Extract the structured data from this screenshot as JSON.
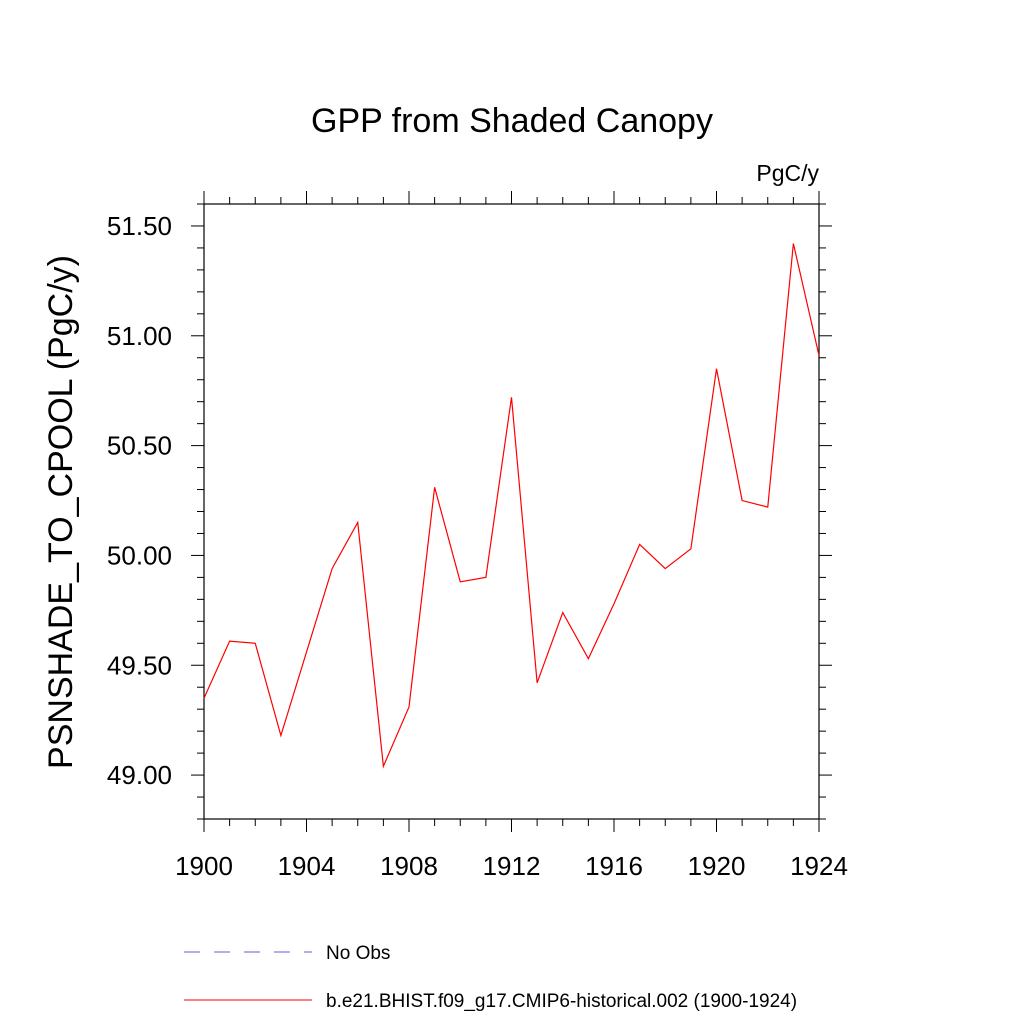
{
  "chart_data": {
    "type": "line",
    "title": "GPP from Shaded Canopy",
    "units_label": "PgC/y",
    "xlabel": "",
    "ylabel": "PSNSHADE_TO_CPOOL  (PgC/y)",
    "xlim": [
      1900,
      1924
    ],
    "ylim": [
      48.8,
      51.6
    ],
    "x_ticks": [
      1900,
      1904,
      1908,
      1912,
      1916,
      1920,
      1924
    ],
    "x_minor_step": 1,
    "y_ticks": [
      49.0,
      49.5,
      50.0,
      50.5,
      51.0,
      51.5
    ],
    "y_tick_labels": [
      "49.00",
      "49.50",
      "50.00",
      "50.50",
      "51.00",
      "51.50"
    ],
    "y_minor_step": 0.1,
    "grid": false,
    "legend_position": "bottom",
    "x": [
      1900,
      1901,
      1902,
      1903,
      1904,
      1905,
      1906,
      1907,
      1908,
      1909,
      1910,
      1911,
      1912,
      1913,
      1914,
      1915,
      1916,
      1917,
      1918,
      1919,
      1920,
      1921,
      1922,
      1923,
      1924
    ],
    "series": [
      {
        "name": "b.e21.BHIST.f09_g17.CMIP6-historical.002 (1900-1924)",
        "color": "#ff0000",
        "style": "solid",
        "values": [
          49.35,
          49.61,
          49.6,
          49.18,
          49.56,
          49.94,
          50.15,
          49.04,
          49.31,
          50.31,
          49.88,
          49.9,
          50.72,
          49.42,
          49.74,
          49.53,
          49.78,
          50.05,
          49.94,
          50.03,
          50.85,
          50.25,
          50.22,
          51.42,
          50.91
        ]
      }
    ],
    "legend": [
      {
        "label": "No Obs",
        "color": "#6a5acd",
        "style": "dashed"
      },
      {
        "label": "b.e21.BHIST.f09_g17.CMIP6-historical.002 (1900-1924)",
        "color": "#ff0000",
        "style": "solid"
      }
    ]
  }
}
